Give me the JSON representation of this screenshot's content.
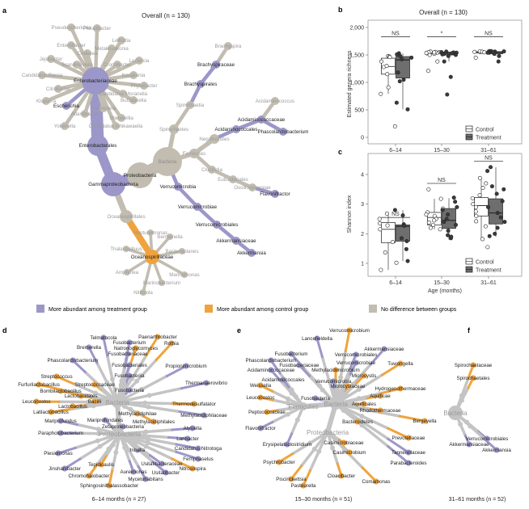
{
  "colors": {
    "treatment": "#9c97c9",
    "control": "#f0a33c",
    "none": "#c2bdb0",
    "none_bottom": "#c4c4c4"
  },
  "legend": [
    {
      "status": "treatment",
      "label": "More abundant among treatment group"
    },
    {
      "status": "control",
      "label": "More abundant among control group"
    },
    {
      "status": "none",
      "label": "No difference between groups"
    }
  ],
  "panel_a": {
    "letter": "a",
    "title": "Overall (n = 130)",
    "nodes": [
      {
        "name": "Bacteria",
        "status": "none"
      },
      {
        "name": "Proteobacteria",
        "status": "none"
      },
      {
        "name": "Gammaproteobacteria",
        "status": "treatment"
      },
      {
        "name": "Enterobacterales",
        "status": "treatment"
      },
      {
        "name": "Enterobacteriaceae",
        "status": "treatment"
      },
      {
        "name": "Escherichia",
        "status": "treatment"
      },
      {
        "name": "Pseudescherichia",
        "status": "none"
      },
      {
        "name": "Pluralibacter",
        "status": "none"
      },
      {
        "name": "Lelliottia",
        "status": "none"
      },
      {
        "name": "Enterobacter",
        "status": "none"
      },
      {
        "name": "Metakosakonia",
        "status": "none"
      },
      {
        "name": "Cedecea",
        "status": "none"
      },
      {
        "name": "Jejubacter",
        "status": "none"
      },
      {
        "name": "Scandinavium",
        "status": "none"
      },
      {
        "name": "Cronobacter",
        "status": "none"
      },
      {
        "name": "Leclercia",
        "status": "none"
      },
      {
        "name": "Candidatus Riesia",
        "status": "none"
      },
      {
        "name": "Kosakonia",
        "status": "none"
      },
      {
        "name": "Phytobacter",
        "status": "none"
      },
      {
        "name": "Citrobacter",
        "status": "none"
      },
      {
        "name": "Candidatus Moranella",
        "status": "none"
      },
      {
        "name": "Kluyvera",
        "status": "none"
      },
      {
        "name": "Buttiauxella",
        "status": "none"
      },
      {
        "name": "Salmonella",
        "status": "none"
      },
      {
        "name": "Atlantibacter",
        "status": "none"
      },
      {
        "name": "Shimwellia",
        "status": "none"
      },
      {
        "name": "Yokenella",
        "status": "none"
      },
      {
        "name": "Candidatus Ishikawaella",
        "status": "none"
      },
      {
        "name": "Oceanospirillales",
        "status": "none"
      },
      {
        "name": "Oceanospirillaceae",
        "status": "control"
      },
      {
        "name": "Neptunomonas",
        "status": "none"
      },
      {
        "name": "Bermanella",
        "status": "none"
      },
      {
        "name": "Thalassolituus",
        "status": "none"
      },
      {
        "name": "Bacterioplanes",
        "status": "none"
      },
      {
        "name": "Amphritea",
        "status": "none"
      },
      {
        "name": "Marinomonas",
        "status": "none"
      },
      {
        "name": "Marinobacterium",
        "status": "none"
      },
      {
        "name": "Nitincola",
        "status": "none"
      },
      {
        "name": "Verrucomicrobia",
        "status": "treatment"
      },
      {
        "name": "Verrucomicrobiae",
        "status": "treatment"
      },
      {
        "name": "Verrucomicrobiales",
        "status": "treatment"
      },
      {
        "name": "Akkermansiaceae",
        "status": "treatment"
      },
      {
        "name": "Akkermansia",
        "status": "treatment"
      },
      {
        "name": "Spirochaetes",
        "status": "none"
      },
      {
        "name": "Spirochaetia",
        "status": "none"
      },
      {
        "name": "Brachyspirales",
        "status": "treatment"
      },
      {
        "name": "Brachyspiraceae",
        "status": "treatment"
      },
      {
        "name": "Brachyspira",
        "status": "none"
      },
      {
        "name": "Firmicutes",
        "status": "none"
      },
      {
        "name": "Negativicutes",
        "status": "none"
      },
      {
        "name": "Acidaminococcales",
        "status": "treatment"
      },
      {
        "name": "Acidaminococcaceae",
        "status": "treatment"
      },
      {
        "name": "Acidaminococcus",
        "status": "none"
      },
      {
        "name": "Phascolarctobacterium",
        "status": "treatment"
      },
      {
        "name": "Clostridia",
        "status": "none"
      },
      {
        "name": "Eubacteriales",
        "status": "none"
      },
      {
        "name": "Oscillospiraceae",
        "status": "none"
      },
      {
        "name": "Flavonifractor",
        "status": "treatment"
      }
    ]
  },
  "panel_d": {
    "letter": "d",
    "caption": "6–14 months (n = 27)",
    "hubs": [
      "Bacteria",
      "Proteobacteria"
    ],
    "nodes": [
      {
        "name": "Telmatocola",
        "status": "treatment"
      },
      {
        "name": "Paenarthrobacter",
        "status": "control"
      },
      {
        "name": "Fusobacterium",
        "status": "treatment"
      },
      {
        "name": "Rothia",
        "status": "control"
      },
      {
        "name": "Bremerella",
        "status": "treatment"
      },
      {
        "name": "Natronoglycomyces",
        "status": "control"
      },
      {
        "name": "Fusobacteriaceae",
        "status": "treatment"
      },
      {
        "name": "Phascolarctobacterium",
        "status": "treatment"
      },
      {
        "name": "Fusobacteriales",
        "status": "treatment"
      },
      {
        "name": "Propionimicrobium",
        "status": "treatment"
      },
      {
        "name": "Streptococcus",
        "status": "control"
      },
      {
        "name": "Fusobacteriia",
        "status": "treatment"
      },
      {
        "name": "Thermanaerovibrio",
        "status": "treatment"
      },
      {
        "name": "Furfurilactobacillus",
        "status": "control"
      },
      {
        "name": "Streptococcaceae",
        "status": "control"
      },
      {
        "name": "Bombilactobacillus",
        "status": "control"
      },
      {
        "name": "Fusobacteria",
        "status": "treatment"
      },
      {
        "name": "Lactobacillales",
        "status": "control"
      },
      {
        "name": "Leuconostoc",
        "status": "control"
      },
      {
        "name": "Bacilli",
        "status": "control"
      },
      {
        "name": "Thermodesulfatator",
        "status": "control"
      },
      {
        "name": "Lactobacillus",
        "status": "control"
      },
      {
        "name": "Latilactobacillus",
        "status": "control"
      },
      {
        "name": "Methylacidiphilae",
        "status": "control"
      },
      {
        "name": "Methylacidiphilaceae",
        "status": "treatment"
      },
      {
        "name": "Mariprofundus",
        "status": "treatment"
      },
      {
        "name": "Mariprofundales",
        "status": "treatment"
      },
      {
        "name": "Methylacidiphilales",
        "status": "control"
      },
      {
        "name": "Zetaproteobacteria",
        "status": "treatment"
      },
      {
        "name": "Alysiella",
        "status": "treatment"
      },
      {
        "name": "Paraphotobacterium",
        "status": "treatment"
      },
      {
        "name": "Laribacter",
        "status": "treatment"
      },
      {
        "name": "Candidatus Nitrotoga",
        "status": "treatment"
      },
      {
        "name": "Inhella",
        "status": "treatment"
      },
      {
        "name": "Plesiomonas",
        "status": "treatment"
      },
      {
        "name": "Ferriphaselus",
        "status": "treatment"
      },
      {
        "name": "Tepidicaulis",
        "status": "control"
      },
      {
        "name": "Usitatibacteraceae",
        "status": "treatment"
      },
      {
        "name": "Nitrosospira",
        "status": "control"
      },
      {
        "name": "Jinshanibacter",
        "status": "treatment"
      },
      {
        "name": "Aureimonas",
        "status": "treatment"
      },
      {
        "name": "Usitatibacter",
        "status": "treatment"
      },
      {
        "name": "Chromohalobacter",
        "status": "control"
      },
      {
        "name": "Mycetohabitans",
        "status": "treatment"
      },
      {
        "name": "Sphingosinithalassobacter",
        "status": "control"
      }
    ]
  },
  "panel_e": {
    "letter": "e",
    "caption": "15–30 months (n = 51)",
    "hubs": [
      "Bacteria",
      "Firmicutes",
      "Proteobacteria"
    ],
    "nodes": [
      {
        "name": "Verrucomicrobium",
        "status": "control"
      },
      {
        "name": "Lancefieldella",
        "status": "treatment"
      },
      {
        "name": "Akkermansiaceae",
        "status": "treatment"
      },
      {
        "name": "Fusobacterium",
        "status": "treatment"
      },
      {
        "name": "Verrucomicrobiales",
        "status": "treatment"
      },
      {
        "name": "Phascolarctobacterium",
        "status": "treatment"
      },
      {
        "name": "Tuwongella",
        "status": "control"
      },
      {
        "name": "Fusobacteriaceae",
        "status": "treatment"
      },
      {
        "name": "Verrucomicrobiae",
        "status": "treatment"
      },
      {
        "name": "Acidaminococcaceae",
        "status": "treatment"
      },
      {
        "name": "Methylacidimicrobium",
        "status": "control"
      },
      {
        "name": "Microcystis",
        "status": "control"
      },
      {
        "name": "Acidaminococcales",
        "status": "treatment"
      },
      {
        "name": "Verrucomicrobia",
        "status": "treatment"
      },
      {
        "name": "Weissella",
        "status": "control"
      },
      {
        "name": "Microcystaceae",
        "status": "control"
      },
      {
        "name": "Hydrogenothermaceae",
        "status": "control"
      },
      {
        "name": "Leuconostoc",
        "status": "control"
      },
      {
        "name": "Aquificae",
        "status": "control"
      },
      {
        "name": "Fusobacteria",
        "status": "treatment"
      },
      {
        "name": "Aquificales",
        "status": "control"
      },
      {
        "name": "Rhodothermaceae",
        "status": "control"
      },
      {
        "name": "Peptococcaceae",
        "status": "control"
      },
      {
        "name": "Bergeyella",
        "status": "control"
      },
      {
        "name": "Bacteroidetes",
        "status": "control"
      },
      {
        "name": "Flavonifractor",
        "status": "treatment"
      },
      {
        "name": "Prevotellaceae",
        "status": "control"
      },
      {
        "name": "Erysipelatoclostridium",
        "status": "treatment"
      },
      {
        "name": "Casimicrobiaceae",
        "status": "control"
      },
      {
        "name": "Casimicrobium",
        "status": "control"
      },
      {
        "name": "Tannerellaceae",
        "status": "treatment"
      },
      {
        "name": "Psychrobacter",
        "status": "control"
      },
      {
        "name": "Parabacteroides",
        "status": "treatment"
      },
      {
        "name": "Cloacibacter",
        "status": "control"
      },
      {
        "name": "Piscirickettsia",
        "status": "control"
      },
      {
        "name": "Comamonas",
        "status": "control"
      },
      {
        "name": "Pasteurella",
        "status": "control"
      }
    ]
  },
  "panel_f": {
    "letter": "f",
    "caption": "31–61 months (n = 52)",
    "hubs": [
      "Bacteria"
    ],
    "nodes": [
      {
        "name": "Spirochaetaceae",
        "status": "control"
      },
      {
        "name": "Spirochaetales",
        "status": "control"
      },
      {
        "name": "Verrucomicrobiales",
        "status": "treatment"
      },
      {
        "name": "Akkermansiaceae",
        "status": "treatment"
      },
      {
        "name": "Akkermansia",
        "status": "treatment"
      }
    ]
  },
  "chart_data": [
    {
      "panel": "b",
      "type": "box",
      "title": "Overall (n = 130)",
      "xlabel": "",
      "ylabel": "Estimated genera richness",
      "ylim": [
        0,
        2000
      ],
      "yticks": [
        0,
        500,
        1000,
        1500,
        2000
      ],
      "ytick_labels": [
        "0",
        "500",
        "1,000",
        "1,500",
        "2,000"
      ],
      "categories": [
        "6–14",
        "15–30",
        "31–61"
      ],
      "significance": [
        "NS",
        "*",
        "NS"
      ],
      "legend": [
        "Control",
        "Treatment"
      ],
      "legend_position": "bottom-right",
      "series": [
        {
          "name": "Control",
          "boxes": [
            {
              "q1": 1150,
              "median": 1290,
              "q3": 1440,
              "low": 790,
              "high": 1480,
              "points": [
                1480,
                1470,
                1380,
                1280,
                1150,
                910,
                790,
                200,
                1460,
                1300
              ]
            },
            {
              "q1": 1520,
              "median": 1545,
              "q3": 1555,
              "low": 1500,
              "high": 1565,
              "points": [
                1560,
                1550,
                1540,
                1530,
                1520,
                1500,
                1380,
                1210,
                1555,
                1545,
                1550,
                1535
              ]
            },
            {
              "q1": 1535,
              "median": 1550,
              "q3": 1560,
              "low": 1520,
              "high": 1570,
              "points": [
                1570,
                1560,
                1555,
                1550,
                1540,
                1450,
                1565,
                1558,
                1548
              ]
            }
          ]
        },
        {
          "name": "Treatment",
          "boxes": [
            {
              "q1": 1080,
              "median": 1410,
              "q3": 1470,
              "low": 510,
              "high": 1530,
              "points": [
                1530,
                1510,
                1450,
                1420,
                1180,
                1050,
                1020,
                630,
                510,
                1480
              ]
            },
            {
              "q1": 1500,
              "median": 1530,
              "q3": 1550,
              "low": 1380,
              "high": 1560,
              "points": [
                1560,
                1550,
                1540,
                1520,
                1500,
                1480,
                1380,
                1100,
                780,
                1545,
                1530,
                1510
              ]
            },
            {
              "q1": 1520,
              "median": 1545,
              "q3": 1560,
              "low": 1480,
              "high": 1570,
              "points": [
                1570,
                1560,
                1550,
                1540,
                1520,
                1480,
                1380,
                1565,
                1555
              ]
            }
          ]
        }
      ]
    },
    {
      "panel": "c",
      "type": "box",
      "title": "",
      "xlabel": "Age (months)",
      "ylabel": "Shannon index",
      "ylim": [
        0.6,
        4.5
      ],
      "yticks": [
        1,
        2,
        3,
        4
      ],
      "ytick_labels": [
        "1",
        "2",
        "3",
        "4"
      ],
      "categories": [
        "6–14",
        "15–30",
        "31–61"
      ],
      "significance": [
        "NS",
        "NS",
        "NS"
      ],
      "legend": [
        "Control",
        "Treatment"
      ],
      "legend_position": "bottom-right",
      "series": [
        {
          "name": "Control",
          "boxes": [
            {
              "q1": 1.7,
              "median": 2.15,
              "q3": 2.38,
              "low": 0.78,
              "high": 2.7,
              "points": [
                2.5,
                2.68,
                2.28,
                2.15,
                1.72,
                1.37,
                1.02,
                0.78,
                2.35
              ]
            },
            {
              "q1": 2.3,
              "median": 2.55,
              "q3": 2.72,
              "low": 2.15,
              "high": 3.18,
              "points": [
                3.5,
                3.18,
                2.85,
                2.72,
                2.6,
                2.5,
                2.38,
                2.3,
                2.2,
                2.15,
                2.65,
                2.45
              ]
            },
            {
              "q1": 2.6,
              "median": 2.95,
              "q3": 3.22,
              "low": 1.8,
              "high": 3.9,
              "points": [
                3.88,
                3.7,
                3.55,
                3.3,
                3.2,
                3.0,
                2.9,
                2.75,
                2.6,
                2.42,
                2.25,
                1.82,
                1.55
              ]
            }
          ]
        },
        {
          "name": "Treatment",
          "boxes": [
            {
              "q1": 1.75,
              "median": 2.25,
              "q3": 2.3,
              "low": 1.08,
              "high": 2.8,
              "points": [
                2.8,
                2.62,
                2.32,
                2.27,
                1.85,
                1.75,
                1.48,
                1.08
              ]
            },
            {
              "q1": 2.18,
              "median": 2.45,
              "q3": 2.85,
              "low": 1.8,
              "high": 3.2,
              "points": [
                3.22,
                3.08,
                2.9,
                2.8,
                2.65,
                2.5,
                2.4,
                2.3,
                2.1,
                1.95,
                1.85,
                1.9
              ]
            },
            {
              "q1": 2.33,
              "median": 2.7,
              "q3": 3.18,
              "low": 1.9,
              "high": 4.25,
              "points": [
                4.25,
                4.12,
                3.6,
                3.5,
                3.35,
                3.1,
                2.9,
                2.7,
                2.55,
                2.4,
                2.2,
                2.0,
                1.92
              ]
            }
          ]
        }
      ]
    }
  ]
}
